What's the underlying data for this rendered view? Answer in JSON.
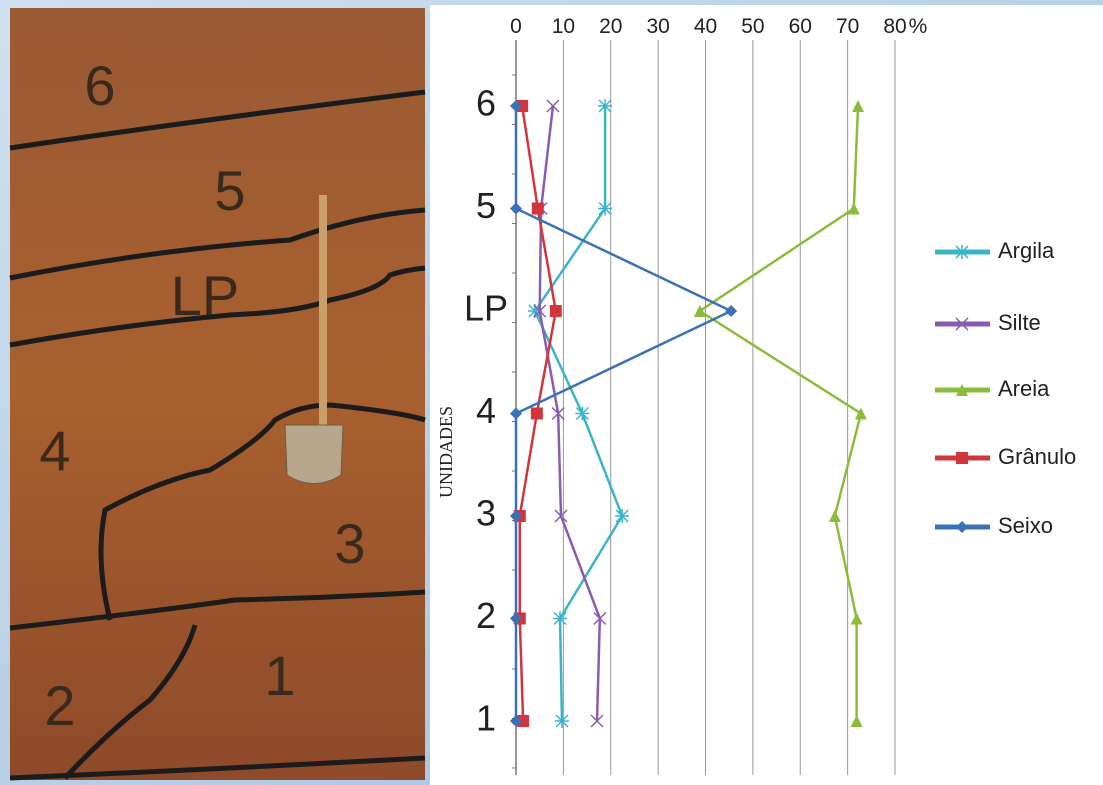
{
  "photo_labels": [
    "6",
    "5",
    "LP",
    "4",
    "3",
    "2",
    "1"
  ],
  "chart_data": {
    "type": "line",
    "ylabel": "UNIDADES",
    "xlabel": "%",
    "categories": [
      "1",
      "2",
      "3",
      "4",
      "LP",
      "5",
      "6"
    ],
    "xlim": [
      0,
      80
    ],
    "xticks": [
      0,
      10,
      20,
      30,
      40,
      50,
      60,
      70,
      80
    ],
    "grid": true,
    "series": [
      {
        "name": "Argila",
        "color": "#3cb4c8",
        "marker": "asterisk",
        "values": [
          9.7,
          9.3,
          22.4,
          14,
          4,
          18.8,
          18.8
        ]
      },
      {
        "name": "Silte",
        "color": "#8a5cb0",
        "marker": "x",
        "values": [
          17.1,
          17.7,
          9.5,
          8.9,
          5,
          5.3,
          7.8
        ]
      },
      {
        "name": "Areia",
        "color": "#8cbc3c",
        "marker": "triangle",
        "values": [
          71.9,
          71.9,
          67.3,
          72.8,
          38.8,
          71.3,
          72.2
        ]
      },
      {
        "name": "Grânulo",
        "color": "#d0363c",
        "marker": "square",
        "values": [
          1.5,
          0.8,
          0.8,
          4.4,
          8.4,
          4.6,
          1.3
        ]
      },
      {
        "name": "Seixo",
        "color": "#3a72b8",
        "marker": "diamond",
        "values": [
          0,
          0,
          0,
          0,
          45.4,
          0,
          0
        ]
      }
    ]
  }
}
